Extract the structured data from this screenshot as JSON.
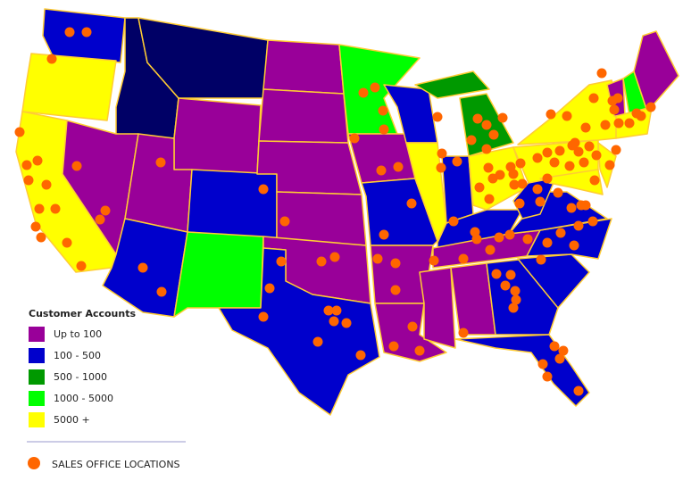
{
  "legend": {
    "title": "Customer Accounts",
    "items": [
      {
        "label": "Up to 100",
        "color": "#990099"
      },
      {
        "label": "100 - 500",
        "color": "#0000cc"
      },
      {
        "label": "500 - 1000",
        "color": "#009900"
      },
      {
        "label": "1000 - 5000",
        "color": "#00ff00"
      },
      {
        "label": "5000 +",
        "color": "#ffff00"
      }
    ]
  },
  "footer": {
    "label": "SALES OFFICE LOCATIONS",
    "dot_color": "#ff6600"
  },
  "outline_color": "#ffcc33",
  "dark_state_color": "#000066"
}
